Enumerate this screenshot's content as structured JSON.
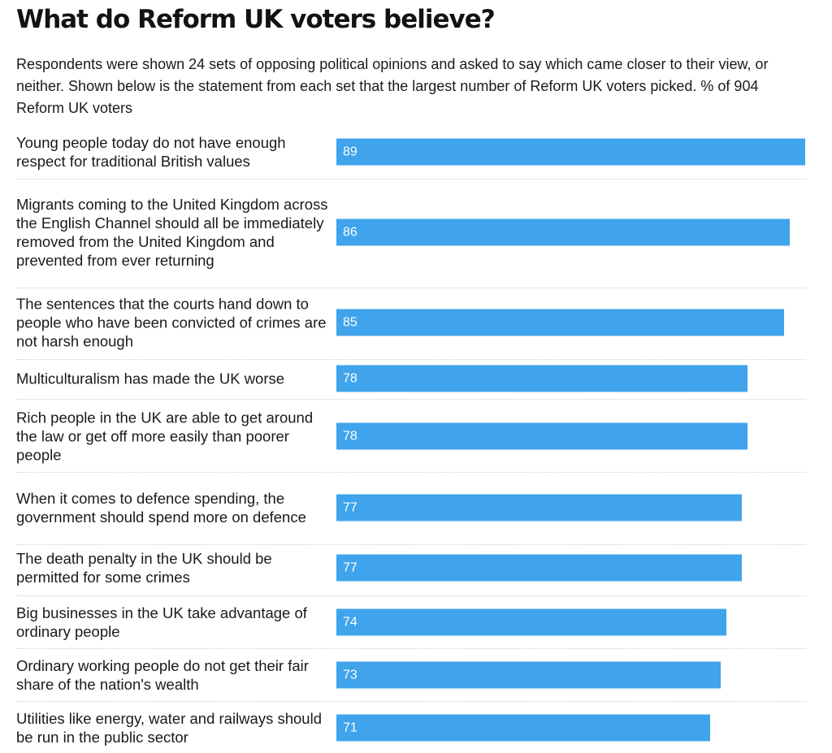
{
  "title": "What do Reform UK voters believe?",
  "subtitle": "Respondents were shown 24 sets of opposing political opinions and asked to say which came closer to their view, or neither. Shown below is the statement from each set that the largest number of Reform UK voters picked. % of 904 Reform UK voters",
  "colors": {
    "bar": "#3fa4ec",
    "value_text": "#ffffff",
    "separator": "#cfcfcf"
  },
  "chart_data": {
    "type": "bar",
    "orientation": "horizontal",
    "xlim": [
      0,
      89
    ],
    "grid": false,
    "categories": [
      "Young people today do not have enough respect for traditional British values",
      "Migrants coming to the United Kingdom across the English Channel should all be immediately removed from the United Kingdom and prevented from ever returning",
      "The sentences that the courts hand down to people who have been convicted of crimes are not harsh enough",
      "Multiculturalism has made the UK worse",
      "Rich people in the UK are able to get around the law or get off more easily than poorer people",
      "When it comes to defence spending, the government should spend more on defence",
      "The death penalty in the UK should be permitted for some crimes",
      "Big businesses in the UK take advantage of ordinary people",
      "Ordinary working people do not get their fair share of the nation's wealth",
      "Utilities like energy, water and railways should be run in the public sector"
    ],
    "values": [
      89,
      86,
      85,
      78,
      78,
      77,
      77,
      74,
      73,
      71
    ]
  }
}
